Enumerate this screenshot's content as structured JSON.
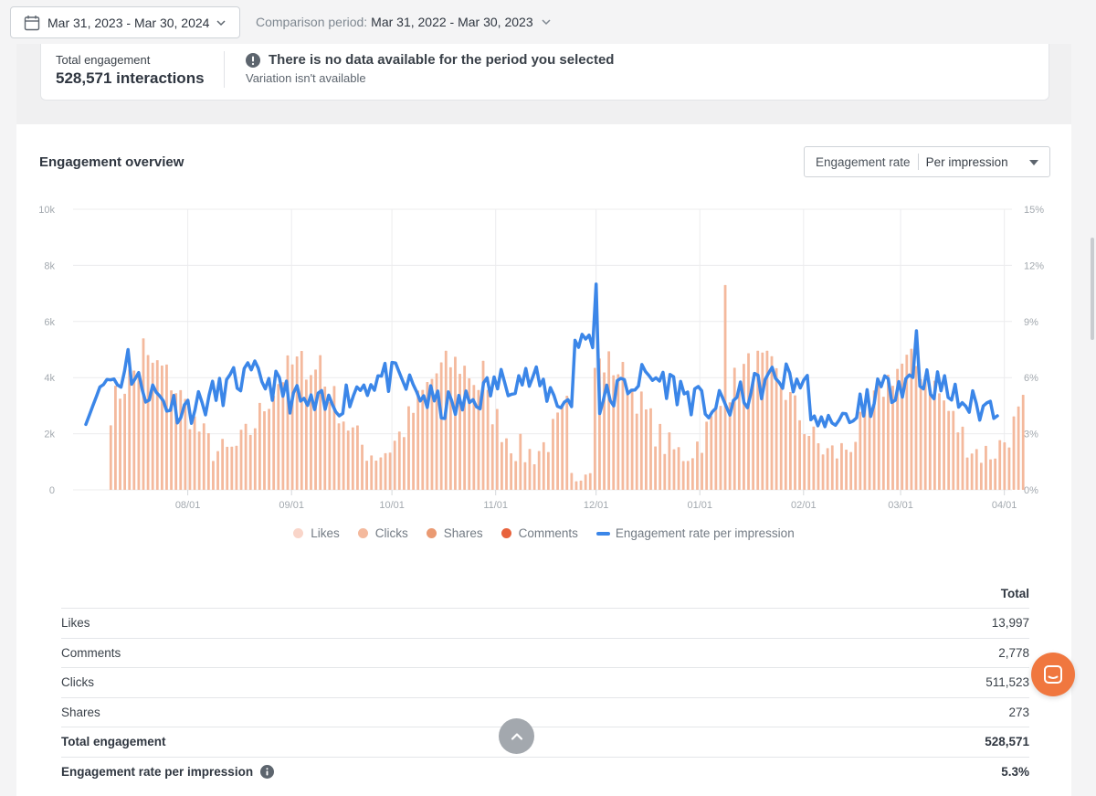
{
  "header": {
    "date_range": "Mar 31, 2023 - Mar 30, 2024",
    "comparison_label": "Comparison period:",
    "comparison_value": "Mar 31, 2022 - Mar 30, 2023"
  },
  "summary": {
    "label": "Total engagement",
    "value": "528,571 interactions",
    "message_title": "There is no data available for the period you selected",
    "message_sub": "Variation isn't available"
  },
  "panel": {
    "title": "Engagement overview",
    "metric_label": "Engagement rate",
    "metric_value": "Per impression"
  },
  "colors": {
    "likes": "#f9d5c9",
    "clicks": "#f4b99d",
    "shares": "#ea9a72",
    "comments": "#e8623c",
    "rate_line": "#3b86e8"
  },
  "chart_data": {
    "type": "bar+line",
    "y_left_ticks": [
      "0",
      "2k",
      "4k",
      "6k",
      "8k",
      "10k"
    ],
    "y_left_range": [
      0,
      10000
    ],
    "y_right_ticks": [
      "0%",
      "3%",
      "6%",
      "9%",
      "12%",
      "15%"
    ],
    "y_right_range": [
      0,
      15
    ],
    "x_ticks": [
      "08/01",
      "09/01",
      "10/01",
      "11/01",
      "12/01",
      "01/01",
      "02/01",
      "03/01",
      "04/01"
    ],
    "x_start": "2023-07-01",
    "x_end": "2024-03-30",
    "grid": true,
    "legend_position": "bottom",
    "series": [
      {
        "name": "Clicks",
        "type": "bar",
        "approx_daily_range": [
          200,
          7300
        ]
      },
      {
        "name": "Engagement rate per impression",
        "type": "line",
        "approx_range_pct": [
          2.4,
          11
        ]
      }
    ],
    "legend": [
      "Likes",
      "Clicks",
      "Shares",
      "Comments",
      "Engagement rate per impression"
    ]
  },
  "table": {
    "header": "Total",
    "rows": [
      {
        "label": "Likes",
        "value": "13,997"
      },
      {
        "label": "Comments",
        "value": "2,778"
      },
      {
        "label": "Clicks",
        "value": "511,523"
      },
      {
        "label": "Shares",
        "value": "273"
      },
      {
        "label": "Total engagement",
        "value": "528,571"
      },
      {
        "label": "Engagement rate per impression",
        "value": "5.3%"
      }
    ]
  }
}
